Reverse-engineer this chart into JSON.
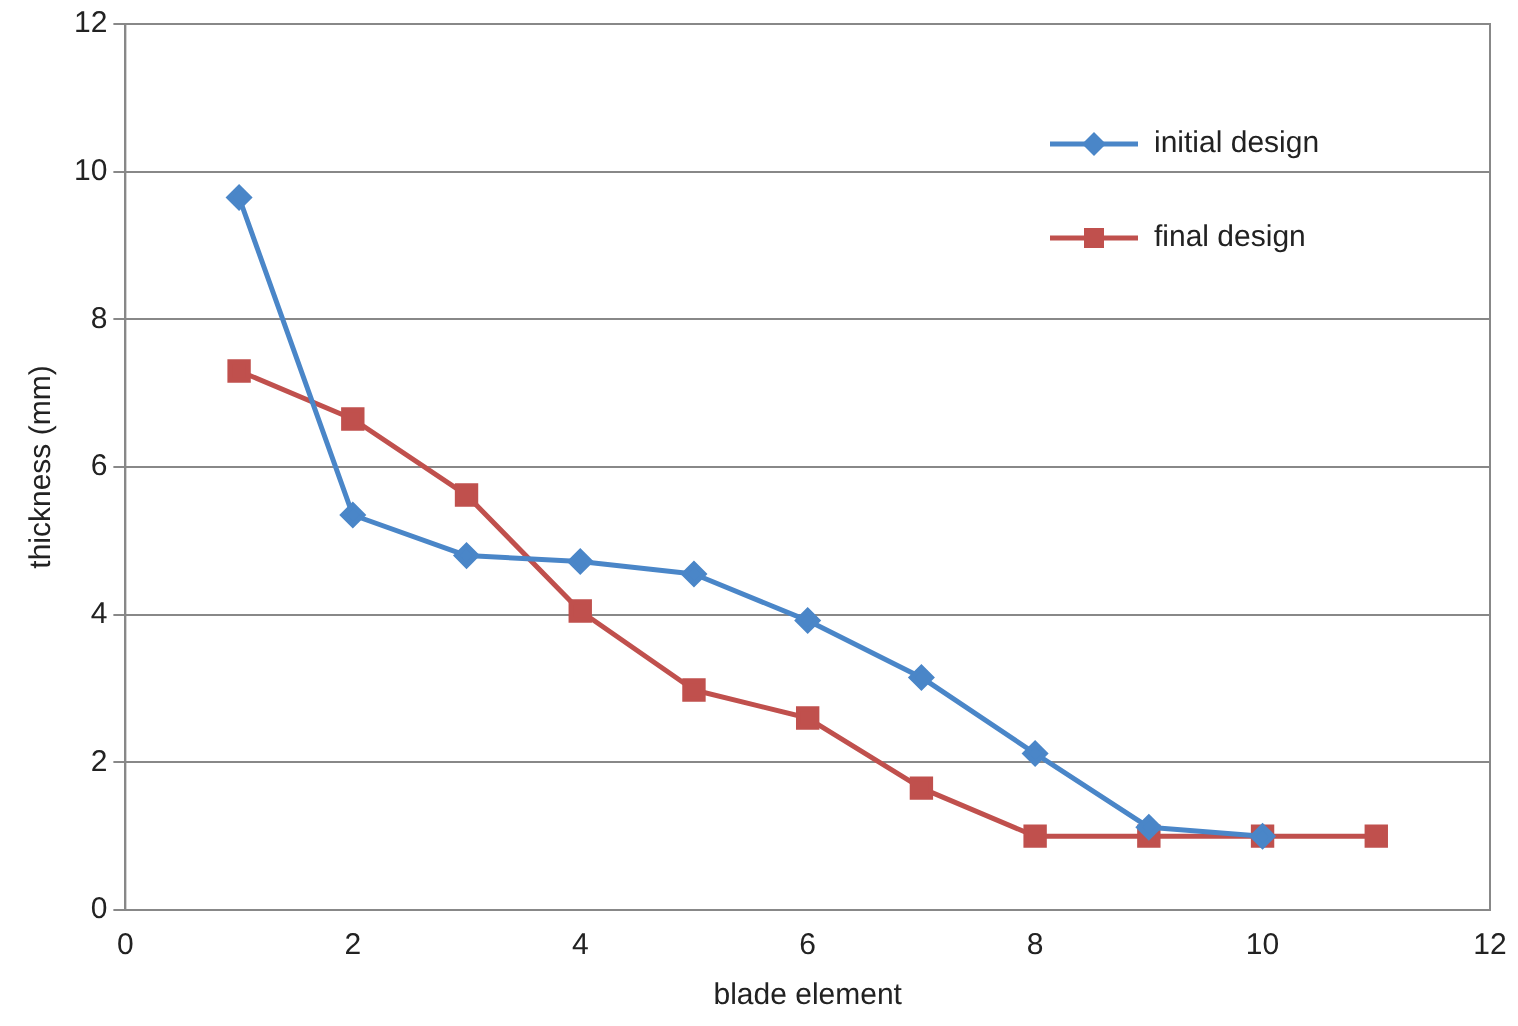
{
  "chart_data": {
    "type": "line",
    "xlabel": "blade element",
    "ylabel": "thickness (mm)",
    "xlim": [
      0,
      12
    ],
    "xticks": [
      0,
      2,
      4,
      6,
      8,
      10,
      12
    ],
    "ylim": [
      0,
      12
    ],
    "yticks": [
      0,
      2,
      4,
      6,
      8,
      10,
      12
    ],
    "grid": "y",
    "legend": "top right",
    "line_style": "solid",
    "series": [
      {
        "name": "initial design",
        "color": "#4a86c8",
        "marker": "diamond",
        "x": [
          1,
          2,
          3,
          4,
          5,
          6,
          7,
          8,
          9,
          10
        ],
        "values": [
          9.65,
          5.35,
          4.8,
          4.72,
          4.55,
          3.92,
          3.15,
          2.12,
          1.12,
          1.0
        ]
      },
      {
        "name": "final design",
        "color": "#c0504d",
        "marker": "square",
        "x": [
          1,
          2,
          3,
          4,
          5,
          6,
          7,
          8,
          9,
          10,
          11
        ],
        "values": [
          7.3,
          6.65,
          5.62,
          4.05,
          2.98,
          2.6,
          1.65,
          1.0,
          1.0,
          1.0,
          1.0
        ]
      }
    ]
  }
}
